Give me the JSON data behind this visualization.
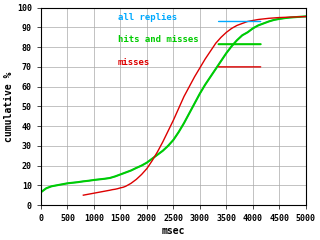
{
  "title": "",
  "xlabel": "msec",
  "ylabel": "cumulative %",
  "xlim": [
    0,
    5000
  ],
  "ylim": [
    0,
    100
  ],
  "xticks": [
    0,
    500,
    1000,
    1500,
    2000,
    2500,
    3000,
    3500,
    4000,
    4500,
    5000
  ],
  "yticks": [
    0,
    10,
    20,
    30,
    40,
    50,
    60,
    70,
    80,
    90,
    100
  ],
  "bg_color": "#ffffff",
  "grid_color": "#aaaaaa",
  "legend": [
    {
      "label": "all replies",
      "color": "#00aaff"
    },
    {
      "label": "hits and misses",
      "color": "#00cc00"
    },
    {
      "label": "misses",
      "color": "#dd0000"
    }
  ],
  "curves": {
    "all_replies": {
      "x": [
        0,
        50,
        100,
        200,
        300,
        400,
        500,
        600,
        700,
        800,
        900,
        1000,
        1100,
        1200,
        1300,
        1400,
        1500,
        1600,
        1700,
        1800,
        1900,
        2000,
        2100,
        2200,
        2300,
        2400,
        2500,
        2600,
        2700,
        2800,
        2900,
        3000,
        3100,
        3200,
        3300,
        3400,
        3500,
        3600,
        3700,
        3800,
        3900,
        4000,
        4100,
        4200,
        4300,
        4400,
        4500,
        4600,
        4700,
        4800,
        4900,
        5000
      ],
      "y": [
        6.5,
        7.5,
        8.5,
        9.5,
        10,
        10.5,
        11,
        11.3,
        11.6,
        12,
        12.3,
        12.7,
        13,
        13.3,
        13.7,
        14.5,
        15.5,
        16.5,
        17.5,
        18.8,
        20,
        21.5,
        23.5,
        25.5,
        27.5,
        30,
        33,
        37,
        41.5,
        46.5,
        51.5,
        56.5,
        61,
        65,
        69,
        73,
        77,
        80.5,
        83.5,
        86,
        87.5,
        89.5,
        91,
        92,
        93,
        93.8,
        94.3,
        94.7,
        95,
        95.2,
        95.4,
        95.5
      ],
      "color": "#00aaff",
      "lw": 1.0
    },
    "hits_and_misses": {
      "x": [
        0,
        50,
        100,
        200,
        300,
        400,
        500,
        600,
        700,
        800,
        900,
        1000,
        1100,
        1200,
        1300,
        1400,
        1500,
        1600,
        1700,
        1800,
        1900,
        2000,
        2100,
        2200,
        2300,
        2400,
        2500,
        2600,
        2700,
        2800,
        2900,
        3000,
        3100,
        3200,
        3300,
        3400,
        3500,
        3600,
        3700,
        3800,
        3900,
        4000,
        4100,
        4200,
        4300,
        4400,
        4500,
        4600,
        4700,
        4800,
        4900,
        5000
      ],
      "y": [
        6.5,
        7.5,
        8.5,
        9.5,
        10,
        10.5,
        11,
        11.3,
        11.6,
        12,
        12.3,
        12.7,
        13,
        13.3,
        13.7,
        14.5,
        15.5,
        16.5,
        17.5,
        18.8,
        20,
        21.5,
        23.5,
        25.5,
        27.5,
        30,
        33,
        37,
        41.5,
        46.5,
        51.5,
        56.5,
        61,
        65,
        69,
        73,
        77,
        80.5,
        83.5,
        86,
        87.5,
        89.5,
        91,
        92,
        93,
        93.8,
        94.3,
        94.7,
        95,
        95.2,
        95.4,
        95.6
      ],
      "color": "#00cc00",
      "lw": 1.5
    },
    "misses": {
      "x": [
        800,
        900,
        1000,
        1100,
        1200,
        1300,
        1350,
        1400,
        1450,
        1500,
        1550,
        1600,
        1700,
        1800,
        1900,
        2000,
        2100,
        2200,
        2300,
        2400,
        2500,
        2600,
        2700,
        2800,
        2900,
        3000,
        3100,
        3200,
        3300,
        3400,
        3500,
        3600,
        3700,
        3800,
        3900,
        4000,
        4100,
        4200,
        4300,
        4400,
        4500,
        4600,
        4700,
        4800,
        4900,
        5000
      ],
      "y": [
        5,
        5.5,
        6,
        6.5,
        7,
        7.5,
        7.8,
        8,
        8.3,
        8.7,
        9,
        9.5,
        11,
        13,
        15.5,
        18.5,
        22.5,
        27,
        32,
        37.5,
        43,
        49,
        55,
        60,
        65,
        69.5,
        74,
        78,
        82,
        85,
        87.5,
        89.5,
        91,
        92,
        93,
        93.5,
        94,
        94.3,
        94.6,
        94.8,
        95,
        95.1,
        95.2,
        95.3,
        95.4,
        95.5
      ],
      "color": "#dd0000",
      "lw": 1.0
    }
  },
  "font_family": "monospace",
  "legend_fontsize": 6.5,
  "axis_label_fontsize": 7,
  "tick_fontsize": 6
}
